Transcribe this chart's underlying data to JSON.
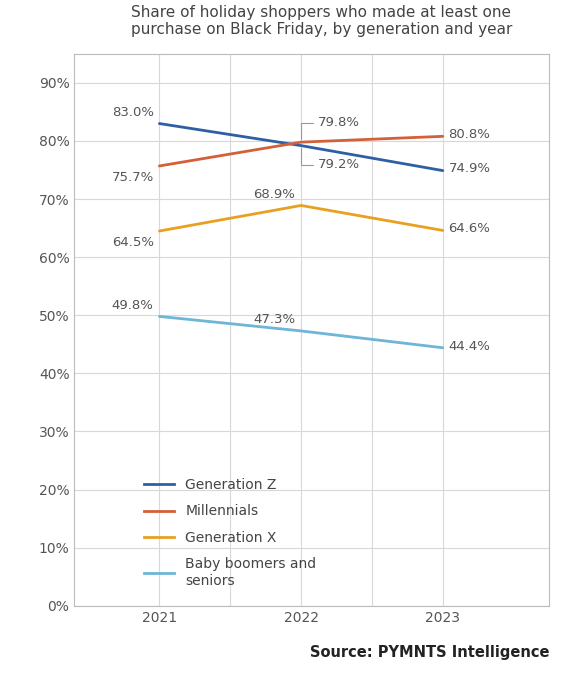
{
  "title": "Share of holiday shoppers who made at least one\npurchase on Black Friday, by generation and year",
  "years": [
    2021,
    2022,
    2023
  ],
  "series": [
    {
      "name": "Generation Z",
      "values": [
        83.0,
        79.2,
        74.9
      ],
      "color": "#2E5FA3",
      "linewidth": 2.0
    },
    {
      "name": "Millennials",
      "values": [
        75.7,
        79.8,
        80.8
      ],
      "color": "#D4603A",
      "linewidth": 2.0
    },
    {
      "name": "Generation X",
      "values": [
        64.5,
        68.9,
        64.6
      ],
      "color": "#E8A020",
      "linewidth": 2.0
    },
    {
      "name": "Baby boomers and\nseniors",
      "values": [
        49.8,
        47.3,
        44.4
      ],
      "color": "#6EB5D8",
      "linewidth": 2.0
    }
  ],
  "ylim": [
    0,
    95
  ],
  "yticks": [
    0,
    10,
    20,
    30,
    40,
    50,
    60,
    70,
    80,
    90
  ],
  "ytick_labels": [
    "0%",
    "10%",
    "20%",
    "30%",
    "40%",
    "50%",
    "60%",
    "70%",
    "80%",
    "90%"
  ],
  "xlim": [
    2020.4,
    2023.75
  ],
  "xticks": [
    2021,
    2022,
    2023
  ],
  "grid_color": "#D8D8D8",
  "border_color": "#BBBBBB",
  "background_color": "#FFFFFF",
  "source_text": "Source: PYMNTS Intelligence",
  "title_fontsize": 11,
  "tick_fontsize": 10,
  "label_fontsize": 9.5,
  "legend_fontsize": 10,
  "source_fontsize": 10.5
}
